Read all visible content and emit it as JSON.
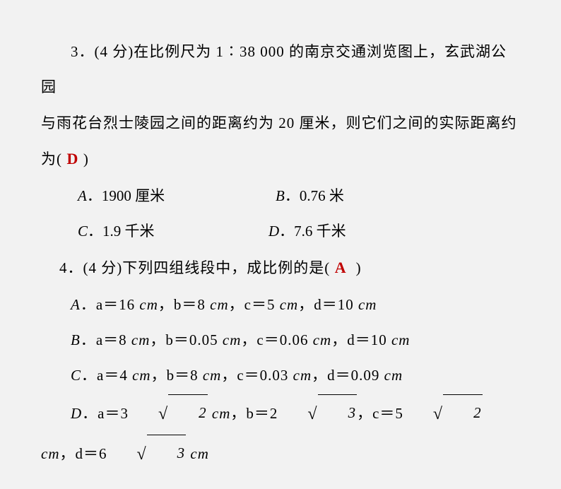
{
  "q3": {
    "prefix": "3．(4 分)在比例尺为 1∶38 000 的南京交通浏览图上，玄武湖公园",
    "line2": "与雨花台烈士陵园之间的距离约为 20 厘米，则它们之间的实际距离约",
    "line3_pre": "为(",
    "answer": "D",
    "line3_post": ")",
    "optA_label": "A",
    "optA_text": "．1900 厘米",
    "optB_label": "B",
    "optB_text": "．0.76 米",
    "optC_label": "C",
    "optC_text": "．1.9 千米",
    "optD_label": "D",
    "optD_text": "．7.6 千米"
  },
  "q4": {
    "prefix": "4．(4 分)下列四组线段中，成比例的是(",
    "answer": "A",
    "suffix": ")",
    "optA": {
      "label": "A",
      "a": "a＝16 ",
      "au": "cm",
      "b": "，b＝8 ",
      "bu": "cm",
      "c": "，c＝5 ",
      "cu": "cm",
      "d": "，d＝10 ",
      "du": "cm"
    },
    "optB": {
      "label": "B",
      "a": "a＝8 ",
      "au": "cm",
      "b": "，b＝0.05 ",
      "bu": "cm",
      "c": "，c＝0.06 ",
      "cu": "cm",
      "d": "，d＝10 ",
      "du": "cm"
    },
    "optC": {
      "label": "C",
      "a": "a＝4 ",
      "au": "cm",
      "b": "，b＝8 ",
      "bu": "cm",
      "c": "，c＝0.03 ",
      "cu": "cm",
      "d": "，d＝0.09 ",
      "du": "cm"
    },
    "optD": {
      "label": "D",
      "pa": "a＝3",
      "ra": "2",
      "ua": " cm",
      "pb": "，b＝2",
      "rb": "3",
      "pc": "，c＝5",
      "rc": "2",
      "uc": " cm",
      "pd": "，d＝6",
      "rd": "3",
      "ud": " cm"
    }
  },
  "colors": {
    "text": "#000000",
    "answer": "#c00000",
    "background": "#f2f2f2"
  },
  "fonts": {
    "body_size": 21,
    "answer_size": 22
  }
}
